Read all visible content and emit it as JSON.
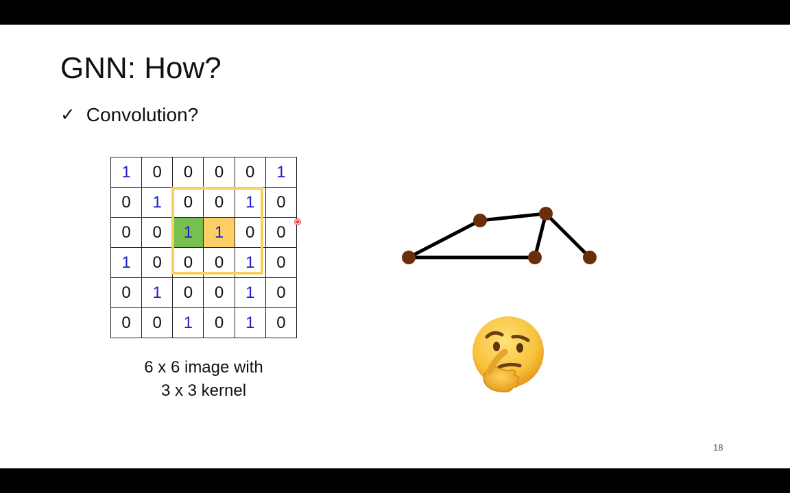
{
  "slide": {
    "title": "GNN: How?",
    "bullet_mark": "✓",
    "bullet_text": "Convolution?",
    "caption_line1": "6 x 6 image with",
    "caption_line2": "3 x 3 kernel",
    "page_number": "18"
  },
  "matrix": {
    "rows": [
      [
        "1",
        "0",
        "0",
        "0",
        "0",
        "1"
      ],
      [
        "0",
        "1",
        "0",
        "0",
        "1",
        "0"
      ],
      [
        "0",
        "0",
        "1",
        "1",
        "0",
        "0"
      ],
      [
        "1",
        "0",
        "0",
        "0",
        "1",
        "0"
      ],
      [
        "0",
        "1",
        "0",
        "0",
        "1",
        "0"
      ],
      [
        "0",
        "0",
        "1",
        "0",
        "1",
        "0"
      ]
    ],
    "highlight_green": [
      2,
      2
    ],
    "highlight_orange": [
      2,
      3
    ],
    "one_color": "#1f1fc4",
    "kernel_color": "#f7d160"
  },
  "graph": {
    "node_color": "#6b2e0a",
    "edge_color": "#000000"
  },
  "icons": {
    "thinking": "thinking-face-emoji",
    "check": "check-mark-icon"
  }
}
